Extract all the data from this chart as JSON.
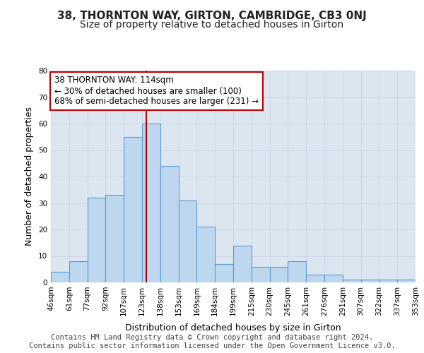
{
  "title_line1": "38, THORNTON WAY, GIRTON, CAMBRIDGE, CB3 0NJ",
  "title_line2": "Size of property relative to detached houses in Girton",
  "xlabel": "Distribution of detached houses by size in Girton",
  "ylabel": "Number of detached properties",
  "categories": [
    "46sqm",
    "61sqm",
    "77sqm",
    "92sqm",
    "107sqm",
    "123sqm",
    "138sqm",
    "153sqm",
    "169sqm",
    "184sqm",
    "199sqm",
    "215sqm",
    "230sqm",
    "245sqm",
    "261sqm",
    "276sqm",
    "291sqm",
    "307sqm",
    "322sqm",
    "337sqm",
    "353sqm"
  ],
  "bar_values": [
    4,
    8,
    32,
    33,
    55,
    60,
    44,
    31,
    21,
    7,
    14,
    6,
    6,
    8,
    3,
    3,
    1,
    1,
    1,
    1
  ],
  "bar_color": "#bdd7ee",
  "bar_edge_color": "#5b9bd5",
  "grid_color": "#d0d8e8",
  "background_color": "#dce6f1",
  "annotation_box_text": "38 THORNTON WAY: 114sqm\n← 30% of detached houses are smaller (100)\n68% of semi-detached houses are larger (231) →",
  "annotation_box_color": "#ffffff",
  "annotation_box_edge_color": "#c00000",
  "vline_color": "#c00000",
  "vline_x": 4.73,
  "ylim": [
    0,
    80
  ],
  "yticks": [
    0,
    10,
    20,
    30,
    40,
    50,
    60,
    70,
    80
  ],
  "footer_line1": "Contains HM Land Registry data © Crown copyright and database right 2024.",
  "footer_line2": "Contains public sector information licensed under the Open Government Licence v3.0.",
  "title_fontsize": 11,
  "subtitle_fontsize": 10,
  "tick_fontsize": 7.5,
  "ylabel_fontsize": 9,
  "xlabel_fontsize": 9,
  "annotation_fontsize": 8.5,
  "footer_fontsize": 7.5
}
